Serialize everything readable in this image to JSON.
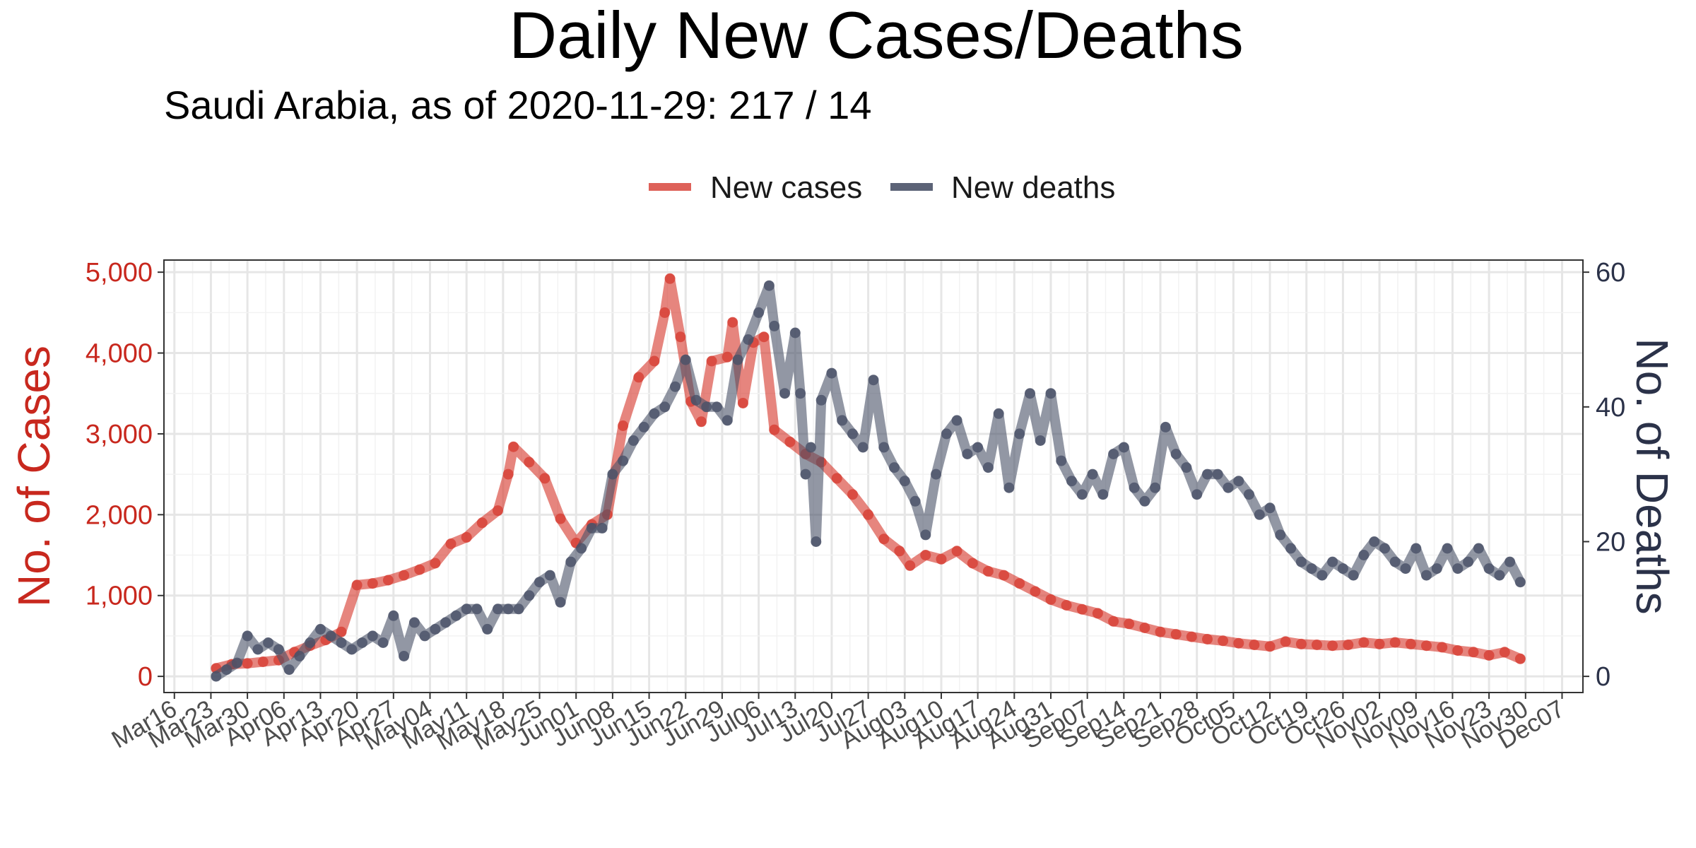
{
  "chart_data": {
    "type": "line",
    "title": "Daily New Cases/Deaths",
    "subtitle": "Saudi Arabia, as of 2020-11-29:  217 / 14",
    "ylabel_left": "No. of Cases",
    "ylabel_right": "No. of Deaths",
    "legend_position": "top-center",
    "grid": true,
    "colors": {
      "cases": "#d63a2f",
      "deaths": "#4a5268",
      "left_axis": "#c8281e",
      "right_axis": "#2b3249"
    },
    "left_ticks": [
      "0",
      "1,000",
      "2,000",
      "3,000",
      "4,000",
      "5,000"
    ],
    "left_tick_values": [
      0,
      1000,
      2000,
      3000,
      4000,
      5000
    ],
    "right_ticks": [
      "0",
      "20",
      "40",
      "60"
    ],
    "right_tick_values": [
      0,
      20,
      40,
      60
    ],
    "ylim_left": [
      -200,
      5150
    ],
    "ylim_right": [
      -2.4,
      61.8
    ],
    "x_start": "2020-03-14",
    "x_end": "2020-12-11",
    "x_ticks": [
      "Mar16",
      "Mar23",
      "Mar30",
      "Apr06",
      "Apr13",
      "Apr20",
      "Apr27",
      "May04",
      "May11",
      "May18",
      "May25",
      "Jun01",
      "Jun08",
      "Jun15",
      "Jun22",
      "Jun29",
      "Jul06",
      "Jul13",
      "Jul20",
      "Jul27",
      "Aug03",
      "Aug10",
      "Aug17",
      "Aug24",
      "Aug31",
      "Sep07",
      "Sep14",
      "Sep21",
      "Sep28",
      "Oct05",
      "Oct12",
      "Oct19",
      "Oct26",
      "Nov02",
      "Nov09",
      "Nov16",
      "Nov23",
      "Nov30",
      "Dec07"
    ],
    "x_tick_dates": [
      "2020-03-16",
      "2020-03-23",
      "2020-03-30",
      "2020-04-06",
      "2020-04-13",
      "2020-04-20",
      "2020-04-27",
      "2020-05-04",
      "2020-05-11",
      "2020-05-18",
      "2020-05-25",
      "2020-06-01",
      "2020-06-08",
      "2020-06-15",
      "2020-06-22",
      "2020-06-29",
      "2020-07-06",
      "2020-07-13",
      "2020-07-20",
      "2020-07-27",
      "2020-08-03",
      "2020-08-10",
      "2020-08-17",
      "2020-08-24",
      "2020-08-31",
      "2020-09-07",
      "2020-09-14",
      "2020-09-21",
      "2020-09-28",
      "2020-10-05",
      "2020-10-12",
      "2020-10-19",
      "2020-10-26",
      "2020-11-02",
      "2020-11-09",
      "2020-11-16",
      "2020-11-23",
      "2020-11-30",
      "2020-12-07"
    ],
    "series": [
      {
        "name": "New cases",
        "axis": "left",
        "points": [
          [
            "2020-03-24",
            100
          ],
          [
            "2020-03-27",
            150
          ],
          [
            "2020-03-30",
            160
          ],
          [
            "2020-04-02",
            180
          ],
          [
            "2020-04-05",
            200
          ],
          [
            "2020-04-08",
            300
          ],
          [
            "2020-04-11",
            380
          ],
          [
            "2020-04-14",
            450
          ],
          [
            "2020-04-17",
            550
          ],
          [
            "2020-04-20",
            1130
          ],
          [
            "2020-04-23",
            1150
          ],
          [
            "2020-04-26",
            1190
          ],
          [
            "2020-04-29",
            1250
          ],
          [
            "2020-05-02",
            1320
          ],
          [
            "2020-05-05",
            1400
          ],
          [
            "2020-05-08",
            1640
          ],
          [
            "2020-05-11",
            1720
          ],
          [
            "2020-05-14",
            1900
          ],
          [
            "2020-05-17",
            2050
          ],
          [
            "2020-05-19",
            2500
          ],
          [
            "2020-05-20",
            2840
          ],
          [
            "2020-05-23",
            2650
          ],
          [
            "2020-05-26",
            2450
          ],
          [
            "2020-05-29",
            1950
          ],
          [
            "2020-06-01",
            1650
          ],
          [
            "2020-06-04",
            1880
          ],
          [
            "2020-06-07",
            2000
          ],
          [
            "2020-06-10",
            3100
          ],
          [
            "2020-06-13",
            3700
          ],
          [
            "2020-06-16",
            3900
          ],
          [
            "2020-06-18",
            4500
          ],
          [
            "2020-06-19",
            4920
          ],
          [
            "2020-06-21",
            4200
          ],
          [
            "2020-06-23",
            3400
          ],
          [
            "2020-06-25",
            3150
          ],
          [
            "2020-06-27",
            3900
          ],
          [
            "2020-06-30",
            3950
          ],
          [
            "2020-07-01",
            4380
          ],
          [
            "2020-07-03",
            3380
          ],
          [
            "2020-07-05",
            4130
          ],
          [
            "2020-07-07",
            4200
          ],
          [
            "2020-07-09",
            3050
          ],
          [
            "2020-07-12",
            2900
          ],
          [
            "2020-07-15",
            2750
          ],
          [
            "2020-07-18",
            2650
          ],
          [
            "2020-07-21",
            2450
          ],
          [
            "2020-07-24",
            2250
          ],
          [
            "2020-07-27",
            2000
          ],
          [
            "2020-07-30",
            1700
          ],
          [
            "2020-08-02",
            1550
          ],
          [
            "2020-08-04",
            1370
          ],
          [
            "2020-08-07",
            1500
          ],
          [
            "2020-08-10",
            1450
          ],
          [
            "2020-08-13",
            1550
          ],
          [
            "2020-08-16",
            1400
          ],
          [
            "2020-08-19",
            1300
          ],
          [
            "2020-08-22",
            1250
          ],
          [
            "2020-08-25",
            1150
          ],
          [
            "2020-08-28",
            1050
          ],
          [
            "2020-08-31",
            950
          ],
          [
            "2020-09-03",
            880
          ],
          [
            "2020-09-06",
            830
          ],
          [
            "2020-09-09",
            780
          ],
          [
            "2020-09-12",
            680
          ],
          [
            "2020-09-15",
            650
          ],
          [
            "2020-09-18",
            600
          ],
          [
            "2020-09-21",
            550
          ],
          [
            "2020-09-24",
            520
          ],
          [
            "2020-09-27",
            490
          ],
          [
            "2020-09-30",
            460
          ],
          [
            "2020-10-03",
            440
          ],
          [
            "2020-10-06",
            410
          ],
          [
            "2020-10-09",
            390
          ],
          [
            "2020-10-12",
            370
          ],
          [
            "2020-10-15",
            430
          ],
          [
            "2020-10-18",
            400
          ],
          [
            "2020-10-21",
            390
          ],
          [
            "2020-10-24",
            380
          ],
          [
            "2020-10-27",
            390
          ],
          [
            "2020-10-30",
            420
          ],
          [
            "2020-11-02",
            400
          ],
          [
            "2020-11-05",
            420
          ],
          [
            "2020-11-08",
            400
          ],
          [
            "2020-11-11",
            380
          ],
          [
            "2020-11-14",
            360
          ],
          [
            "2020-11-17",
            320
          ],
          [
            "2020-11-20",
            300
          ],
          [
            "2020-11-23",
            260
          ],
          [
            "2020-11-26",
            300
          ],
          [
            "2020-11-29",
            217
          ]
        ]
      },
      {
        "name": "New deaths",
        "axis": "right",
        "points": [
          [
            "2020-03-24",
            0
          ],
          [
            "2020-03-26",
            1
          ],
          [
            "2020-03-28",
            2
          ],
          [
            "2020-03-30",
            6
          ],
          [
            "2020-04-01",
            4
          ],
          [
            "2020-04-03",
            5
          ],
          [
            "2020-04-05",
            4
          ],
          [
            "2020-04-07",
            1
          ],
          [
            "2020-04-09",
            3
          ],
          [
            "2020-04-11",
            5
          ],
          [
            "2020-04-13",
            7
          ],
          [
            "2020-04-15",
            6
          ],
          [
            "2020-04-17",
            5
          ],
          [
            "2020-04-19",
            4
          ],
          [
            "2020-04-21",
            5
          ],
          [
            "2020-04-23",
            6
          ],
          [
            "2020-04-25",
            5
          ],
          [
            "2020-04-27",
            9
          ],
          [
            "2020-04-29",
            3
          ],
          [
            "2020-05-01",
            8
          ],
          [
            "2020-05-03",
            6
          ],
          [
            "2020-05-05",
            7
          ],
          [
            "2020-05-07",
            8
          ],
          [
            "2020-05-09",
            9
          ],
          [
            "2020-05-11",
            10
          ],
          [
            "2020-05-13",
            10
          ],
          [
            "2020-05-15",
            7
          ],
          [
            "2020-05-17",
            10
          ],
          [
            "2020-05-19",
            10
          ],
          [
            "2020-05-21",
            10
          ],
          [
            "2020-05-23",
            12
          ],
          [
            "2020-05-25",
            14
          ],
          [
            "2020-05-27",
            15
          ],
          [
            "2020-05-29",
            11
          ],
          [
            "2020-05-31",
            17
          ],
          [
            "2020-06-02",
            19
          ],
          [
            "2020-06-04",
            22
          ],
          [
            "2020-06-06",
            22
          ],
          [
            "2020-06-08",
            30
          ],
          [
            "2020-06-10",
            32
          ],
          [
            "2020-06-12",
            35
          ],
          [
            "2020-06-14",
            37
          ],
          [
            "2020-06-16",
            39
          ],
          [
            "2020-06-18",
            40
          ],
          [
            "2020-06-20",
            43
          ],
          [
            "2020-06-22",
            47
          ],
          [
            "2020-06-24",
            41
          ],
          [
            "2020-06-26",
            40
          ],
          [
            "2020-06-28",
            40
          ],
          [
            "2020-06-30",
            38
          ],
          [
            "2020-07-02",
            47
          ],
          [
            "2020-07-04",
            50
          ],
          [
            "2020-07-06",
            54
          ],
          [
            "2020-07-08",
            58
          ],
          [
            "2020-07-09",
            52
          ],
          [
            "2020-07-11",
            42
          ],
          [
            "2020-07-13",
            51
          ],
          [
            "2020-07-14",
            42
          ],
          [
            "2020-07-15",
            30
          ],
          [
            "2020-07-16",
            34
          ],
          [
            "2020-07-17",
            20
          ],
          [
            "2020-07-18",
            41
          ],
          [
            "2020-07-20",
            45
          ],
          [
            "2020-07-22",
            38
          ],
          [
            "2020-07-24",
            36
          ],
          [
            "2020-07-26",
            34
          ],
          [
            "2020-07-28",
            44
          ],
          [
            "2020-07-30",
            34
          ],
          [
            "2020-08-01",
            31
          ],
          [
            "2020-08-03",
            29
          ],
          [
            "2020-08-05",
            26
          ],
          [
            "2020-08-07",
            21
          ],
          [
            "2020-08-09",
            30
          ],
          [
            "2020-08-11",
            36
          ],
          [
            "2020-08-13",
            38
          ],
          [
            "2020-08-15",
            33
          ],
          [
            "2020-08-17",
            34
          ],
          [
            "2020-08-19",
            31
          ],
          [
            "2020-08-21",
            39
          ],
          [
            "2020-08-23",
            28
          ],
          [
            "2020-08-25",
            36
          ],
          [
            "2020-08-27",
            42
          ],
          [
            "2020-08-29",
            35
          ],
          [
            "2020-08-31",
            42
          ],
          [
            "2020-09-02",
            32
          ],
          [
            "2020-09-04",
            29
          ],
          [
            "2020-09-06",
            27
          ],
          [
            "2020-09-08",
            30
          ],
          [
            "2020-09-10",
            27
          ],
          [
            "2020-09-12",
            33
          ],
          [
            "2020-09-14",
            34
          ],
          [
            "2020-09-16",
            28
          ],
          [
            "2020-09-18",
            26
          ],
          [
            "2020-09-20",
            28
          ],
          [
            "2020-09-22",
            37
          ],
          [
            "2020-09-24",
            33
          ],
          [
            "2020-09-26",
            31
          ],
          [
            "2020-09-28",
            27
          ],
          [
            "2020-09-30",
            30
          ],
          [
            "2020-10-02",
            30
          ],
          [
            "2020-10-04",
            28
          ],
          [
            "2020-10-06",
            29
          ],
          [
            "2020-10-08",
            27
          ],
          [
            "2020-10-10",
            24
          ],
          [
            "2020-10-12",
            25
          ],
          [
            "2020-10-14",
            21
          ],
          [
            "2020-10-16",
            19
          ],
          [
            "2020-10-18",
            17
          ],
          [
            "2020-10-20",
            16
          ],
          [
            "2020-10-22",
            15
          ],
          [
            "2020-10-24",
            17
          ],
          [
            "2020-10-26",
            16
          ],
          [
            "2020-10-28",
            15
          ],
          [
            "2020-10-30",
            18
          ],
          [
            "2020-11-01",
            20
          ],
          [
            "2020-11-03",
            19
          ],
          [
            "2020-11-05",
            17
          ],
          [
            "2020-11-07",
            16
          ],
          [
            "2020-11-09",
            19
          ],
          [
            "2020-11-11",
            15
          ],
          [
            "2020-11-13",
            16
          ],
          [
            "2020-11-15",
            19
          ],
          [
            "2020-11-17",
            16
          ],
          [
            "2020-11-19",
            17
          ],
          [
            "2020-11-21",
            19
          ],
          [
            "2020-11-23",
            16
          ],
          [
            "2020-11-25",
            15
          ],
          [
            "2020-11-27",
            17
          ],
          [
            "2020-11-29",
            14
          ]
        ]
      }
    ]
  }
}
